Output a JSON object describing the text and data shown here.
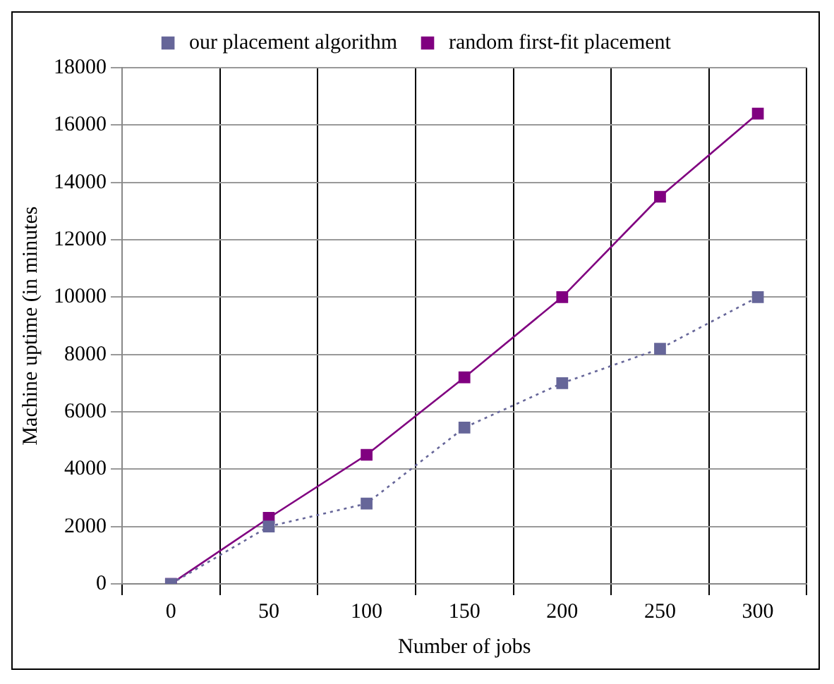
{
  "chart_data": {
    "type": "line",
    "xlabel": "Number of jobs",
    "ylabel": "Machine uptime (in minutes",
    "categories": [
      "0",
      "50",
      "100",
      "150",
      "200",
      "250",
      "300"
    ],
    "series": [
      {
        "name": "our placement algorithm",
        "color": "#666699",
        "values": [
          0,
          2000,
          2800,
          5450,
          7000,
          8200,
          10000
        ],
        "line_style": "dotted"
      },
      {
        "name": "random first-fit placement",
        "color": "#800080",
        "values": [
          0,
          2300,
          4500,
          7200,
          10000,
          13500,
          16400
        ],
        "line_style": "solid"
      }
    ],
    "ylim": [
      0,
      18000
    ],
    "yticks": [
      0,
      2000,
      4000,
      6000,
      8000,
      10000,
      12000,
      14000,
      16000,
      18000
    ],
    "grid": true,
    "legend": "top",
    "marker": "square"
  }
}
